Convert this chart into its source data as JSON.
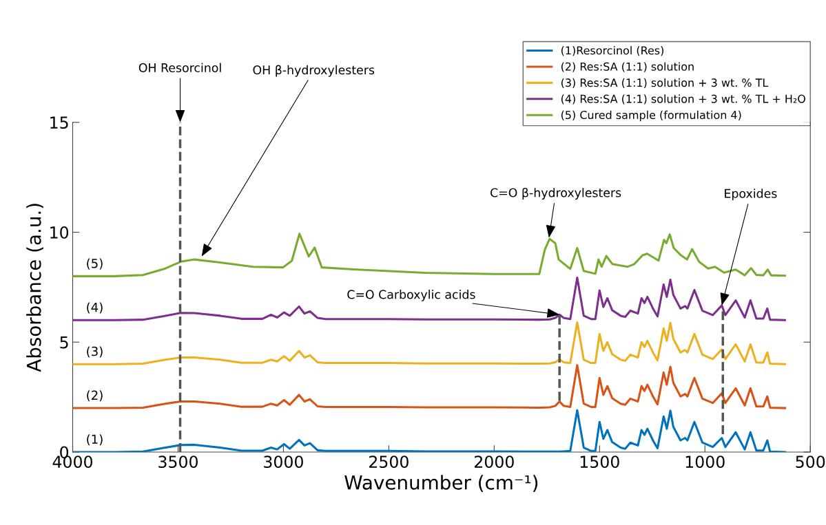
{
  "chart_data": {
    "type": "line",
    "xlabel": "Wavenumber (cm⁻¹)",
    "ylabel": "Absorbance (a.u.)",
    "x": [
      4000,
      3800,
      3667,
      3560,
      3487,
      3422,
      3300,
      3199,
      3100,
      3059,
      3030,
      2997,
      2970,
      2926,
      2900,
      2874,
      2838,
      2800,
      2700,
      2500,
      2326,
      2000,
      1800,
      1786,
      1737,
      1710,
      1690,
      1670,
      1639,
      1606,
      1575,
      1540,
      1520,
      1500,
      1482,
      1463,
      1440,
      1400,
      1378,
      1354,
      1318,
      1301,
      1287,
      1273,
      1245,
      1225,
      1196,
      1181,
      1164,
      1150,
      1116,
      1094,
      1083,
      1050,
      1012,
      963,
      920,
      903,
      854,
      811,
      784,
      756,
      723,
      704,
      691,
      620
    ],
    "xlim": [
      4000,
      500
    ],
    "xticks": [
      4000,
      3500,
      3000,
      2500,
      2000,
      1500,
      1000,
      500
    ],
    "ylim": [
      0,
      15
    ],
    "yticks": [
      0,
      5,
      10,
      15
    ],
    "grid": false,
    "legend": "top right",
    "ref_lines": [
      {
        "axis": "x",
        "value": 3490,
        "label": null,
        "color": "#555555",
        "line_style": "dashed"
      }
    ],
    "line_style": "solid",
    "marker": "none",
    "series": [
      {
        "name": "(1)Resorcinol (Res)",
        "color": "#0072bd",
        "values": [
          0,
          0,
          0.02,
          0.2,
          0.32,
          0.33,
          0.2,
          0.06,
          0.06,
          0.2,
          0.12,
          0.36,
          0.15,
          0.55,
          0.3,
          0.4,
          0.08,
          0.05,
          0.05,
          0.05,
          0.03,
          0.03,
          0.02,
          0.02,
          0.02,
          0.02,
          0.02,
          0.03,
          0.05,
          1.9,
          0.2,
          0.05,
          0.05,
          1.37,
          0.6,
          1.0,
          0.45,
          0.2,
          0.15,
          0.43,
          0.3,
          1.0,
          0.78,
          1.06,
          0.5,
          0.17,
          1.62,
          1.06,
          1.88,
          1.15,
          0.53,
          0.64,
          0.53,
          1.37,
          0.43,
          0.23,
          0.64,
          0.23,
          0.9,
          0.12,
          0.9,
          0.07,
          0.07,
          0.53,
          0.02,
          0
        ]
      },
      {
        "name": "(2) Res:SA (1:1) solution",
        "color": "#d95319",
        "values": [
          2,
          2,
          2.02,
          2.2,
          2.3,
          2.3,
          2.2,
          2.06,
          2.06,
          2.2,
          2.12,
          2.36,
          2.15,
          2.6,
          2.3,
          2.4,
          2.08,
          2.05,
          2.05,
          2.05,
          2.03,
          2.03,
          2.02,
          2.02,
          2.03,
          2.1,
          2.3,
          2.1,
          2.05,
          3.95,
          2.2,
          2.05,
          2.05,
          3.37,
          2.6,
          3.0,
          2.45,
          2.2,
          2.15,
          2.43,
          2.3,
          3.0,
          2.78,
          3.06,
          2.5,
          2.17,
          3.62,
          3.06,
          3.88,
          3.15,
          2.53,
          2.64,
          2.53,
          3.37,
          2.43,
          2.23,
          2.67,
          2.23,
          2.9,
          2.12,
          2.9,
          2.07,
          2.07,
          2.53,
          2.02,
          2
        ]
      },
      {
        "name": "(3) Res:SA (1:1) solution + 3 wt. % TL",
        "color": "#edb120",
        "values": [
          4,
          4,
          4.02,
          4.2,
          4.3,
          4.3,
          4.2,
          4.06,
          4.06,
          4.2,
          4.12,
          4.36,
          4.15,
          4.6,
          4.3,
          4.4,
          4.08,
          4.05,
          4.05,
          4.05,
          4.03,
          4.03,
          4.02,
          4.02,
          4.03,
          4.08,
          4.22,
          4.08,
          4.05,
          5.9,
          4.2,
          4.05,
          4.05,
          5.37,
          4.6,
          5.0,
          4.45,
          4.2,
          4.15,
          4.43,
          4.3,
          5.0,
          4.78,
          5.06,
          4.5,
          4.17,
          5.62,
          5.06,
          5.88,
          5.15,
          4.53,
          4.64,
          4.53,
          5.37,
          4.43,
          4.23,
          4.67,
          4.23,
          4.9,
          4.12,
          4.9,
          4.07,
          4.07,
          4.53,
          4.02,
          4
        ]
      },
      {
        "name": "(4) Res:SA (1:1) solution + 3 wt. % TL + H₂O",
        "color": "#7e2f8e",
        "values": [
          6,
          6,
          6.02,
          6.2,
          6.33,
          6.32,
          6.2,
          6.06,
          6.06,
          6.25,
          6.12,
          6.35,
          6.2,
          6.62,
          6.3,
          6.4,
          6.1,
          6.05,
          6.05,
          6.05,
          6.03,
          6.03,
          6.02,
          6.02,
          6.03,
          6.1,
          6.25,
          6.1,
          6.05,
          7.93,
          6.2,
          6.05,
          6.05,
          7.35,
          6.6,
          7.0,
          6.45,
          6.2,
          6.15,
          6.43,
          6.3,
          7.0,
          6.78,
          7.06,
          6.5,
          6.17,
          7.62,
          7.06,
          7.84,
          7.15,
          6.53,
          6.64,
          6.53,
          7.37,
          6.43,
          6.23,
          6.67,
          6.23,
          6.9,
          6.12,
          6.9,
          6.07,
          6.07,
          6.53,
          6.02,
          6
        ]
      },
      {
        "name": "(5) Cured sample (formulation 4)",
        "color": "#77ac30",
        "x": [
          4000,
          3800,
          3667,
          3560,
          3487,
          3422,
          3300,
          3144,
          3002,
          2960,
          2924,
          2880,
          2852,
          2818,
          2708,
          2326,
          2000,
          1786,
          1760,
          1737,
          1710,
          1694,
          1639,
          1606,
          1575,
          1520,
          1505,
          1490,
          1468,
          1439,
          1367,
          1335,
          1296,
          1274,
          1220,
          1194,
          1183,
          1167,
          1148,
          1116,
          1085,
          1061,
          1028,
          985,
          952,
          909,
          854,
          811,
          781,
          756,
          723,
          702,
          686,
          620
        ],
        "values": [
          8.0,
          8.0,
          8.05,
          8.35,
          8.66,
          8.76,
          8.62,
          8.43,
          8.4,
          8.7,
          9.93,
          8.9,
          9.3,
          8.4,
          8.33,
          8.15,
          8.1,
          8.1,
          9.2,
          9.7,
          9.5,
          8.76,
          8.33,
          9.28,
          8.24,
          8.11,
          8.76,
          8.43,
          8.92,
          8.55,
          8.43,
          8.55,
          8.95,
          9.02,
          8.71,
          9.65,
          9.5,
          9.9,
          9.28,
          8.97,
          8.76,
          9.23,
          8.66,
          8.35,
          8.43,
          8.16,
          8.3,
          8.04,
          8.37,
          8.06,
          8.04,
          8.3,
          8.04,
          8.02
        ]
      },
      {
        "x": [
          1690,
          1690
        ],
        "values": [
          6.2,
          2.3
        ],
        "color": "#555555",
        "line_style": "dashed"
      },
      {
        "x": [
          915,
          915
        ],
        "values": [
          6.4,
          0.8
        ],
        "color": "#555555",
        "line_style": "dashed"
      }
    ],
    "annotations": [
      {
        "text": "OH Resorcinol",
        "x": 3490,
        "y": 15
      },
      {
        "text": "OH β-hydroxylesters",
        "x": 3388,
        "y": 8.9
      },
      {
        "text": "C=O β-hydroxylesters",
        "x": 1740,
        "y": 9.75
      },
      {
        "text": "C=O Carboxylic acids",
        "x": 1690,
        "y": 6.25
      },
      {
        "text": "Epoxides",
        "x": 920,
        "y": 6.67
      },
      {
        "text": "(5)",
        "x": 4000,
        "y": 8.0
      },
      {
        "text": "(4)",
        "x": 4000,
        "y": 6
      },
      {
        "text": "(3)",
        "x": 4000,
        "y": 4
      },
      {
        "text": "(2)",
        "x": 4000,
        "y": 2
      },
      {
        "text": "(1)",
        "x": 4000,
        "y": 0
      }
    ]
  }
}
